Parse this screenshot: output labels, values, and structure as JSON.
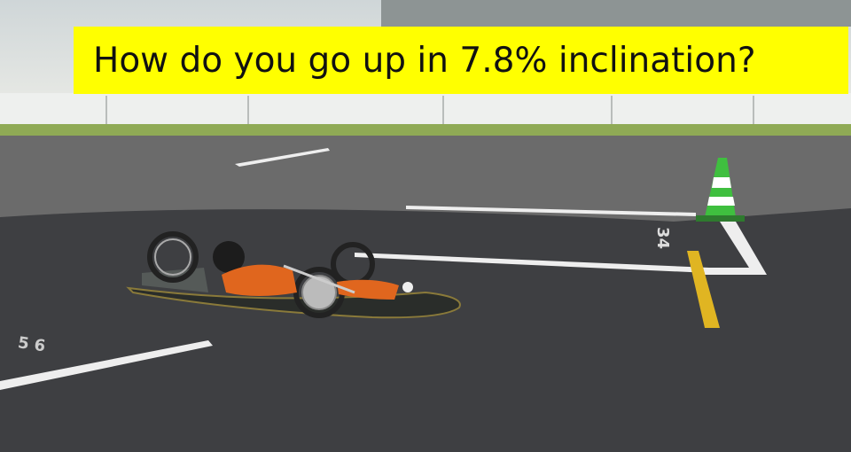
{
  "caption": "How do you go up in 7.8% inclination?",
  "track_markings": [
    "56",
    "34"
  ]
}
